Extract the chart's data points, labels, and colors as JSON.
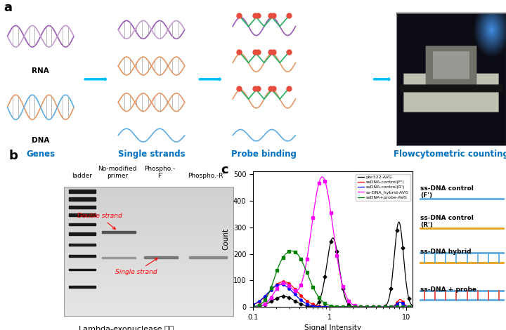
{
  "panel_a_labels": [
    "Genes",
    "Single strands",
    "Probe binding",
    "Flowcytometric counting"
  ],
  "panel_a_label_color": "#0070C0",
  "panel_b_title": "Lambda-exonuclease 처리",
  "panel_b_col_labels": [
    "ladder",
    "No-modified\nprimer",
    "Phospho.-\nF'",
    "Phospho.-R'"
  ],
  "panel_c_xlabel": "Signal Intensity",
  "panel_c_ylabel": "Count",
  "panel_c_legend": [
    {
      "label": "pbr322-AVG",
      "color": "black",
      "marker": "D"
    },
    {
      "label": "ssDNA-control(F')",
      "color": "red",
      "marker": "o"
    },
    {
      "label": "ssDNA-control(R')",
      "color": "blue",
      "marker": "o"
    },
    {
      "label": "ss-DNA_hybrid-AVG",
      "color": "magenta",
      "marker": "s"
    },
    {
      "label": "ssDNA+probe-AVG",
      "color": "green",
      "marker": "s"
    }
  ],
  "panel_c_right_labels": [
    "ss-DNA control\n(F')",
    "ss-DNA control\n(R')",
    "ss-DNA hybrid",
    "ss-DNA + probe"
  ],
  "bg_color": "#FFFFFF",
  "rna_color1": "#9B59B6",
  "rna_color2": "#C39BD3",
  "dna_color1": "#E59866",
  "dna_color2": "#5DADE2",
  "probe_color": "#E74C3C",
  "green_probe": "#27AE60",
  "arrow_color": "#00BFFF"
}
